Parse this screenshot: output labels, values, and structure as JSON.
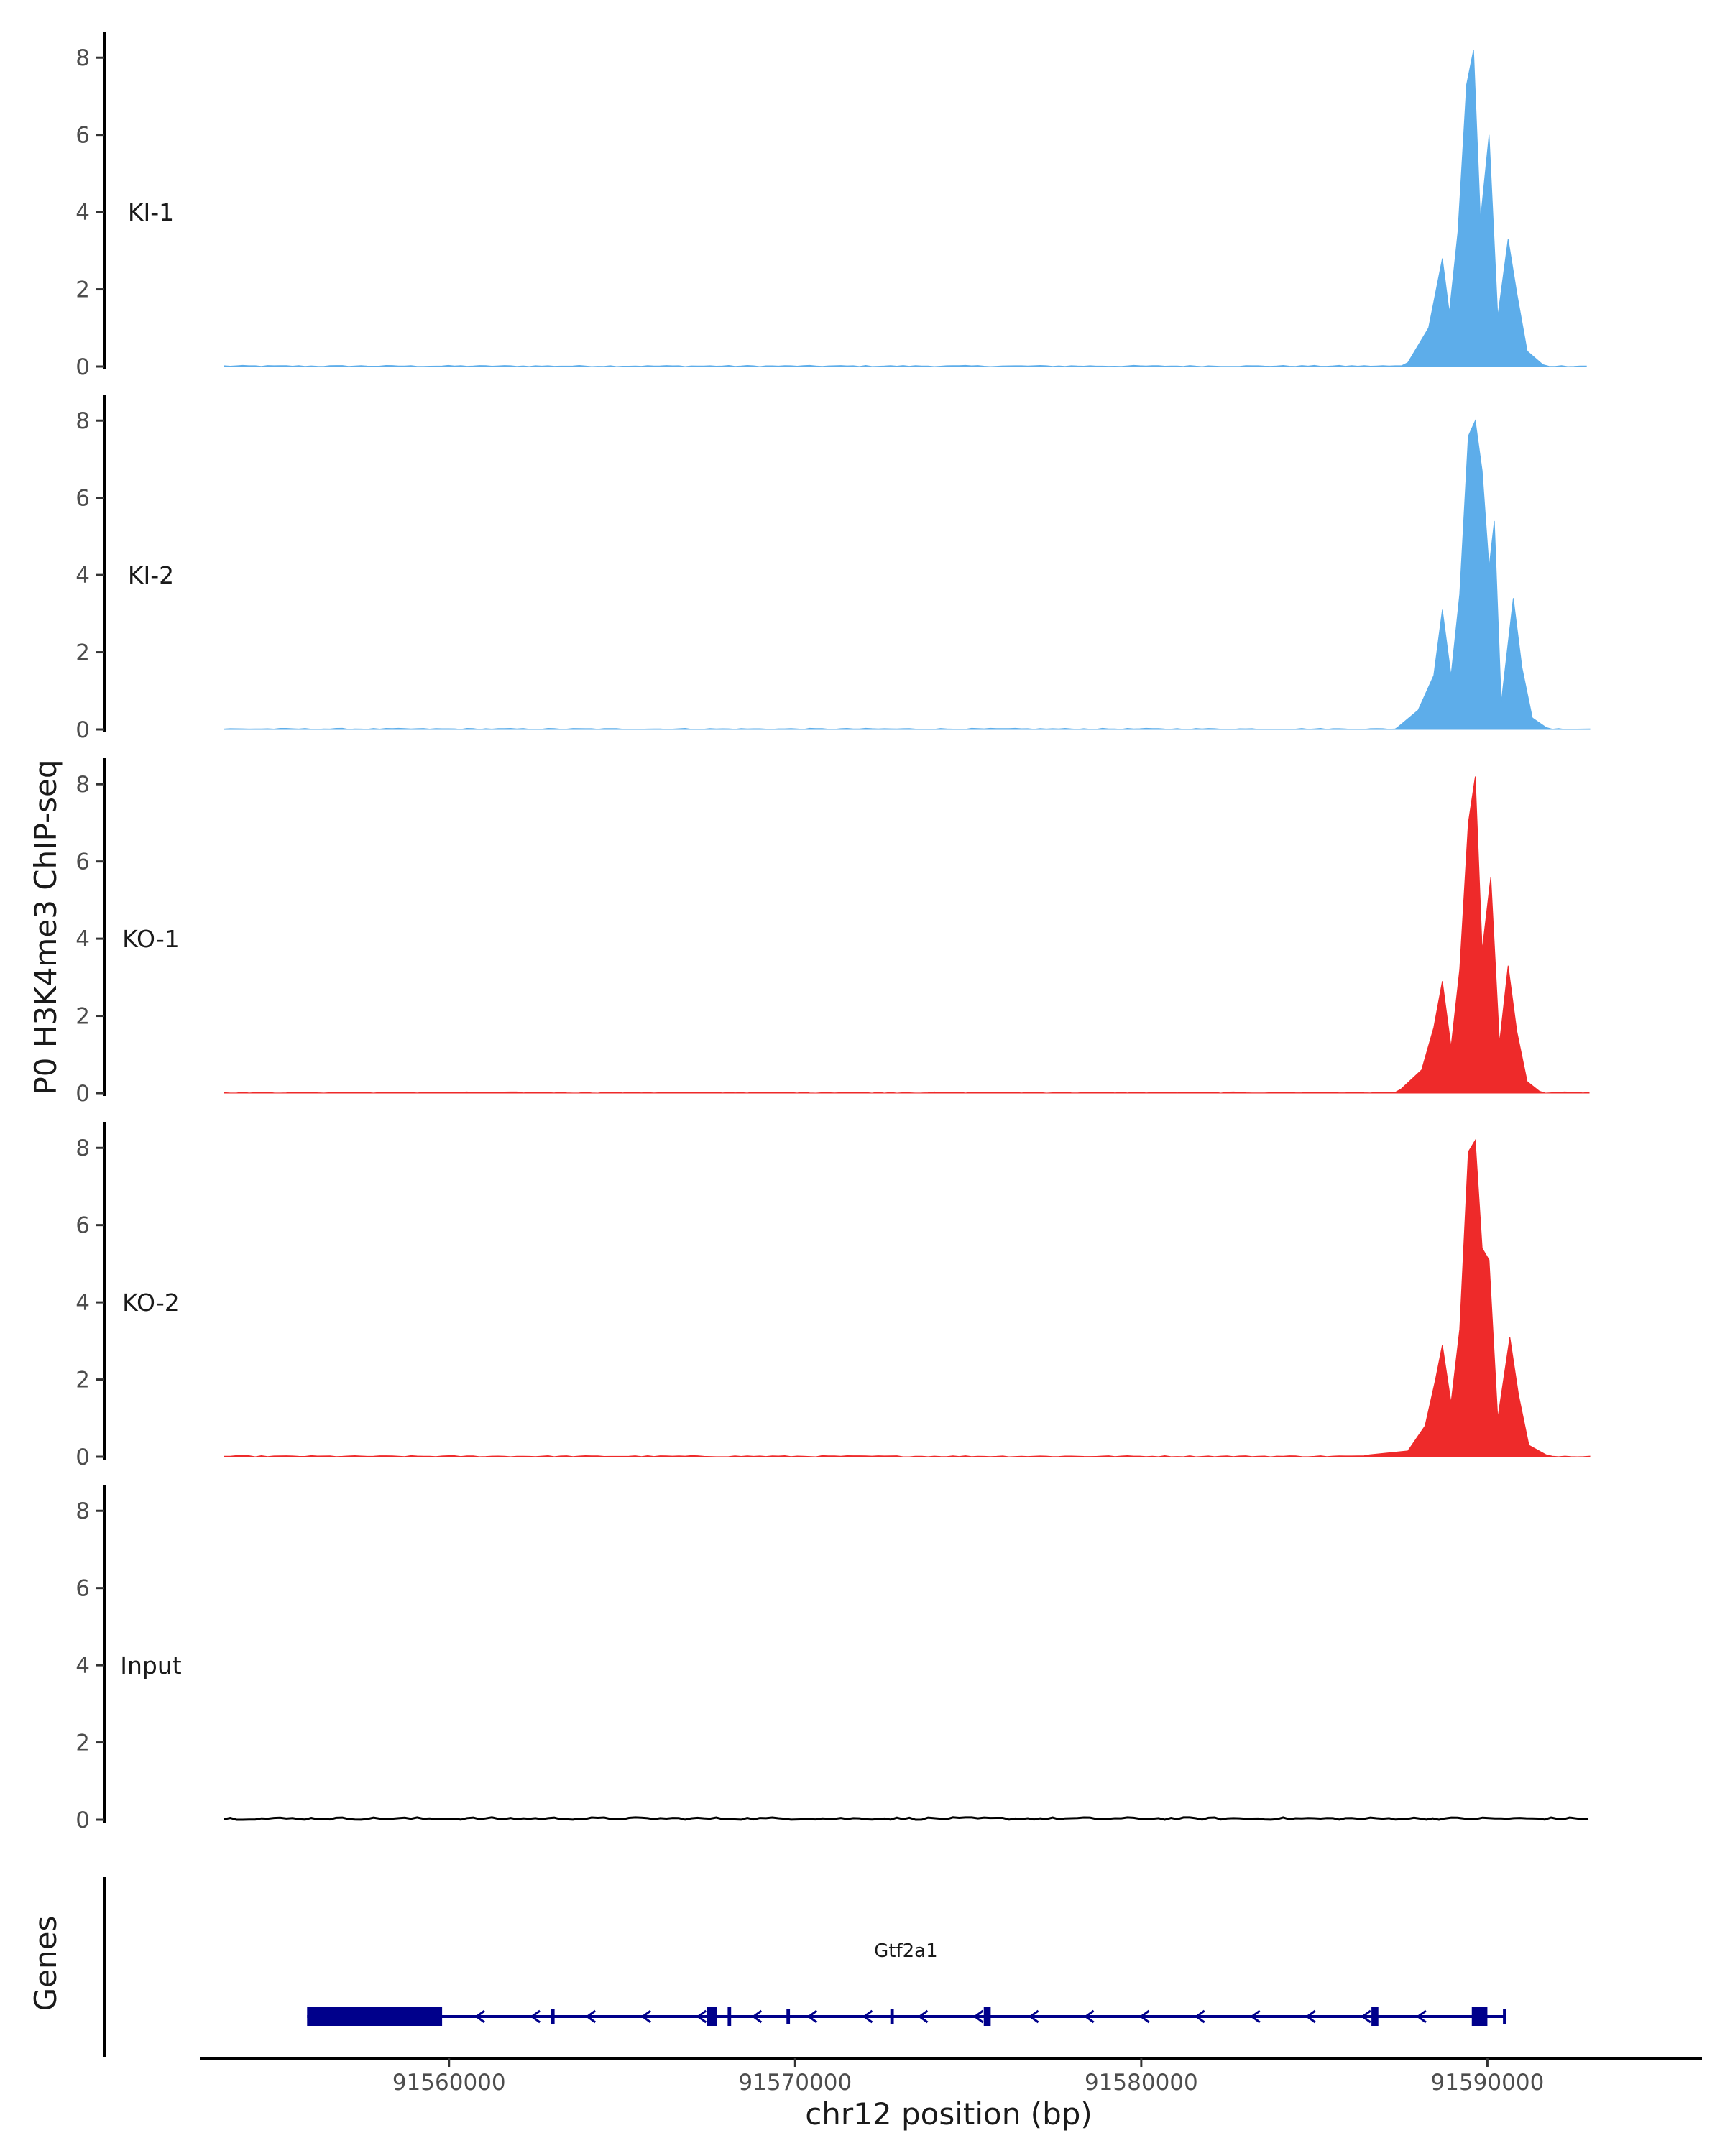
{
  "chart_data": {
    "type": "area",
    "ylabel": "P0 H3K4me3 ChIP-seq",
    "xlabel": "chr12 position (bp)",
    "genes_label": "Genes",
    "ylim": [
      0,
      8.6
    ],
    "yticks": [
      0,
      2,
      4,
      6,
      8
    ],
    "xlim": [
      91552800,
      91596200
    ],
    "xticks": [
      91560000,
      91570000,
      91580000,
      91590000
    ],
    "xtick_labels": [
      "91560000",
      "91570000",
      "91580000",
      "91590000"
    ],
    "data_range": [
      91553500,
      91593000
    ],
    "tracks": [
      {
        "name": "KI-1",
        "color": "#5DADEA",
        "peaks": [
          {
            "x": 91587700,
            "y": 0.1
          },
          {
            "x": 91588300,
            "y": 1.0
          },
          {
            "x": 91588700,
            "y": 2.8
          },
          {
            "x": 91588900,
            "y": 1.4
          },
          {
            "x": 91589150,
            "y": 3.5
          },
          {
            "x": 91589400,
            "y": 7.3
          },
          {
            "x": 91589600,
            "y": 8.2
          },
          {
            "x": 91589800,
            "y": 3.8
          },
          {
            "x": 91590050,
            "y": 6.0
          },
          {
            "x": 91590300,
            "y": 1.3
          },
          {
            "x": 91590600,
            "y": 3.3
          },
          {
            "x": 91590850,
            "y": 1.9
          },
          {
            "x": 91591150,
            "y": 0.4
          },
          {
            "x": 91591600,
            "y": 0.05
          }
        ]
      },
      {
        "name": "KI-2",
        "color": "#5DADEA",
        "peaks": [
          {
            "x": 91587400,
            "y": 0.05
          },
          {
            "x": 91588000,
            "y": 0.5
          },
          {
            "x": 91588450,
            "y": 1.4
          },
          {
            "x": 91588700,
            "y": 3.1
          },
          {
            "x": 91588950,
            "y": 1.4
          },
          {
            "x": 91589200,
            "y": 3.5
          },
          {
            "x": 91589450,
            "y": 7.6
          },
          {
            "x": 91589650,
            "y": 8.0
          },
          {
            "x": 91589850,
            "y": 6.7
          },
          {
            "x": 91590050,
            "y": 4.2
          },
          {
            "x": 91590200,
            "y": 5.4
          },
          {
            "x": 91590400,
            "y": 0.7
          },
          {
            "x": 91590750,
            "y": 3.4
          },
          {
            "x": 91591000,
            "y": 1.6
          },
          {
            "x": 91591300,
            "y": 0.3
          },
          {
            "x": 91591700,
            "y": 0.05
          }
        ]
      },
      {
        "name": "KO-1",
        "color": "#EE2A2A",
        "peaks": [
          {
            "x": 91587500,
            "y": 0.1
          },
          {
            "x": 91588100,
            "y": 0.6
          },
          {
            "x": 91588450,
            "y": 1.7
          },
          {
            "x": 91588700,
            "y": 2.9
          },
          {
            "x": 91588950,
            "y": 1.2
          },
          {
            "x": 91589200,
            "y": 3.2
          },
          {
            "x": 91589450,
            "y": 7.0
          },
          {
            "x": 91589650,
            "y": 8.2
          },
          {
            "x": 91589850,
            "y": 3.7
          },
          {
            "x": 91590100,
            "y": 5.6
          },
          {
            "x": 91590350,
            "y": 1.3
          },
          {
            "x": 91590600,
            "y": 3.3
          },
          {
            "x": 91590850,
            "y": 1.6
          },
          {
            "x": 91591150,
            "y": 0.3
          },
          {
            "x": 91591500,
            "y": 0.05
          }
        ]
      },
      {
        "name": "KO-2",
        "color": "#EE2A2A",
        "peaks": [
          {
            "x": 91586600,
            "y": 0.05
          },
          {
            "x": 91587700,
            "y": 0.15
          },
          {
            "x": 91588200,
            "y": 0.8
          },
          {
            "x": 91588500,
            "y": 2.0
          },
          {
            "x": 91588700,
            "y": 2.9
          },
          {
            "x": 91588950,
            "y": 1.4
          },
          {
            "x": 91589200,
            "y": 3.3
          },
          {
            "x": 91589450,
            "y": 7.9
          },
          {
            "x": 91589650,
            "y": 8.2
          },
          {
            "x": 91589850,
            "y": 5.4
          },
          {
            "x": 91590050,
            "y": 5.1
          },
          {
            "x": 91590300,
            "y": 1.0
          },
          {
            "x": 91590650,
            "y": 3.1
          },
          {
            "x": 91590900,
            "y": 1.6
          },
          {
            "x": 91591200,
            "y": 0.3
          },
          {
            "x": 91591700,
            "y": 0.05
          }
        ]
      },
      {
        "name": "Input",
        "color": "#000000",
        "peaks": []
      }
    ],
    "gene": {
      "name": "Gtf2a1",
      "color": "#00008B",
      "start": 91555900,
      "end": 91590500,
      "strand": "-",
      "exons": [
        {
          "start": 91555900,
          "end": 91559800,
          "thick": true
        },
        {
          "start": 91562950,
          "end": 91563050,
          "thick": false
        },
        {
          "start": 91567450,
          "end": 91567750,
          "thick": true
        },
        {
          "start": 91568050,
          "end": 91568150,
          "thick": true
        },
        {
          "start": 91569750,
          "end": 91569850,
          "thick": false
        },
        {
          "start": 91572750,
          "end": 91572850,
          "thick": false
        },
        {
          "start": 91575450,
          "end": 91575650,
          "thick": true
        },
        {
          "start": 91586650,
          "end": 91586850,
          "thick": true
        },
        {
          "start": 91589550,
          "end": 91590000,
          "thick": true
        },
        {
          "start": 91590450,
          "end": 91590550,
          "thick": false
        }
      ]
    }
  }
}
